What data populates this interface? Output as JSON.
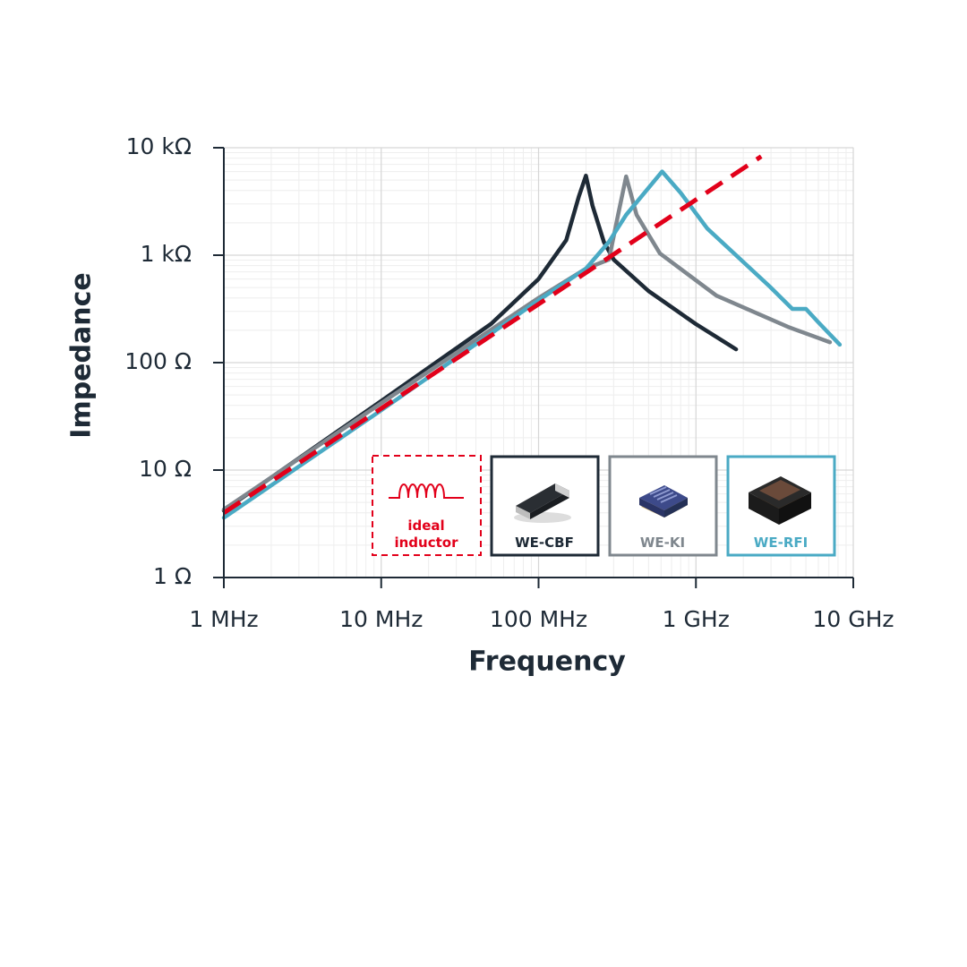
{
  "chart_data": {
    "type": "line",
    "x_label": "Frequency",
    "y_label": "Impedance",
    "log_x": true,
    "log_y": true,
    "grid": true,
    "minor_grid": true,
    "xlim": [
      1000000,
      10000000000
    ],
    "xticks": [
      {
        "value": 1000000,
        "label": "1 MHz"
      },
      {
        "value": 10000000,
        "label": "10 MHz"
      },
      {
        "value": 100000000,
        "label": "100 MHz"
      },
      {
        "value": 1000000000,
        "label": "1 GHz"
      },
      {
        "value": 10000000000,
        "label": "10 GHz"
      }
    ],
    "ylim": [
      1,
      10000
    ],
    "yticks": [
      {
        "value": 1,
        "label": "1 Ω"
      },
      {
        "value": 10,
        "label": "10 Ω"
      },
      {
        "value": 100,
        "label": "100 Ω"
      },
      {
        "value": 1000,
        "label": "1 kΩ"
      },
      {
        "value": 10000,
        "label": "10 kΩ"
      }
    ],
    "legend_position": "bottom-right",
    "series": [
      {
        "name": "ideal inductor",
        "color": "#e2001a",
        "style": "dashed",
        "x": [
          1000000,
          2600000000
        ],
        "values": [
          4,
          8300
        ]
      },
      {
        "name": "WE-CBF",
        "color": "#1e2a36",
        "style": "solid",
        "x": [
          1000000,
          10000000,
          50000000,
          100000000,
          150000000,
          180000000,
          200000000,
          220000000,
          260000000,
          300000000,
          500000000,
          1000000000,
          1800000000
        ],
        "values": [
          4.2,
          44,
          230,
          600,
          1380,
          3500,
          5500,
          2900,
          1330,
          910,
          464,
          228,
          133
        ]
      },
      {
        "name": "WE-KI",
        "color": "#7f878e",
        "style": "solid",
        "x": [
          1000000,
          10000000,
          100000000,
          200000000,
          280000000,
          320000000,
          360000000,
          420000000,
          590000000,
          1350000000,
          3850000000,
          7100000000
        ],
        "values": [
          4.3,
          42,
          400,
          750,
          910,
          2370,
          5400,
          2370,
          1040,
          420,
          215,
          155
        ]
      },
      {
        "name": "WE-RFI",
        "color": "#4aaac4",
        "style": "solid",
        "x": [
          1000000,
          10000000,
          100000000,
          200000000,
          280000000,
          360000000,
          610000000,
          800000000,
          1180000000,
          2950000000,
          4100000000,
          5000000000,
          6000000000,
          8200000000
        ],
        "values": [
          3.6,
          36,
          380,
          750,
          1330,
          2370,
          6000,
          3800,
          1770,
          510,
          316,
          316,
          237,
          147
        ]
      }
    ]
  }
}
